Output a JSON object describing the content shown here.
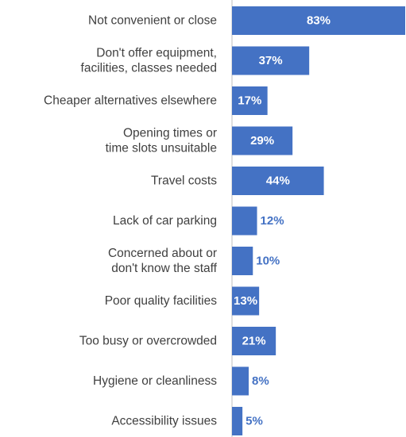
{
  "chart_data": {
    "type": "bar",
    "orientation": "horizontal",
    "categories": [
      [
        "Not convenient or close"
      ],
      [
        "Don't offer equipment,",
        "facilities, classes needed"
      ],
      [
        "Cheaper alternatives elsewhere"
      ],
      [
        "Opening times or",
        "time slots unsuitable"
      ],
      [
        "Travel costs"
      ],
      [
        "Lack of car parking"
      ],
      [
        "Concerned about or",
        "don't know the staff"
      ],
      [
        "Poor quality facilities"
      ],
      [
        "Too busy or overcrowded"
      ],
      [
        "Hygiene or cleanliness"
      ],
      [
        "Accessibility issues"
      ]
    ],
    "values": [
      83,
      37,
      17,
      29,
      44,
      12,
      10,
      13,
      21,
      8,
      5
    ],
    "value_labels": [
      "83%",
      "37%",
      "17%",
      "29%",
      "44%",
      "12%",
      "10%",
      "13%",
      "21%",
      "8%",
      "5%"
    ],
    "bar_color": "#4472C4",
    "axis_line_color": "#BFBFBF",
    "xlim": [
      0,
      83
    ],
    "grid": false,
    "legend": "none"
  }
}
